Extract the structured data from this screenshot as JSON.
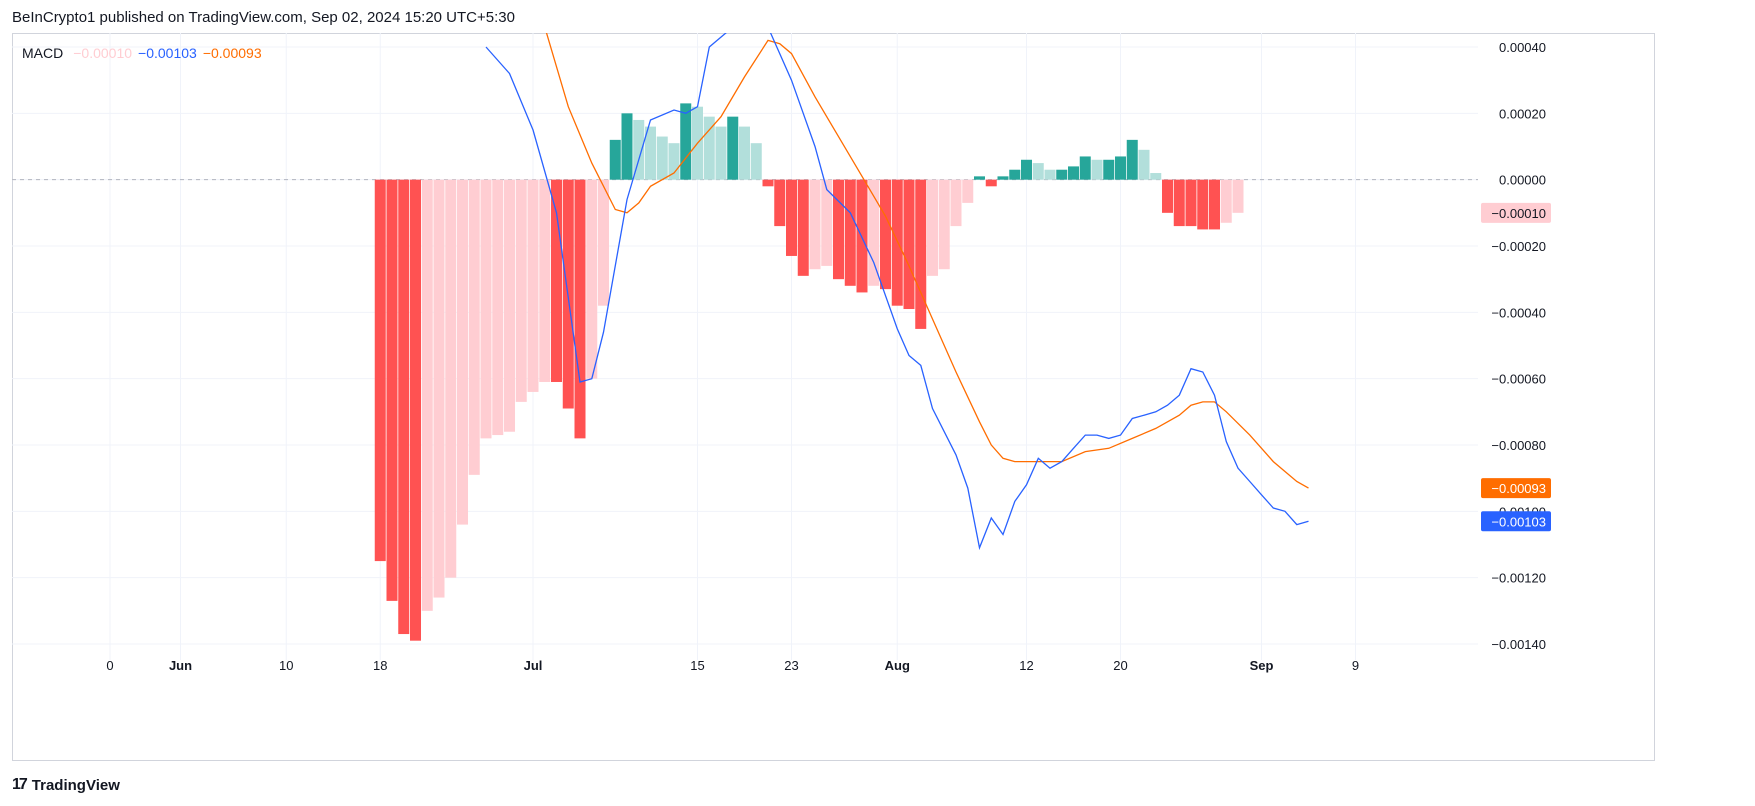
{
  "header": {
    "published": "BeInCrypto1 published on TradingView.com, Sep 02, 2024 15:20 UTC+5:30"
  },
  "legend": {
    "name": "MACD",
    "hist_value": "−0.00010",
    "macd_value": "−0.00103",
    "signal_value": "−0.00093"
  },
  "footer": {
    "logo_mark": "17",
    "brand": "TradingView"
  },
  "colors": {
    "macd_line": "#2962ff",
    "signal_line": "#ff6d00",
    "hist_pos_strong": "#26a69a",
    "hist_pos_weak": "#b2dfdb",
    "hist_neg_strong": "#ff5252",
    "hist_neg_weak": "#ffcdd2",
    "grid": "#f0f3fa",
    "zero_line": "#b2b5be"
  },
  "chart_data": {
    "type": "bar+line",
    "title": "MACD",
    "x_axis_labels": [
      {
        "label": "0",
        "day": 26
      },
      {
        "label": "Jun",
        "day": 32
      },
      {
        "label": "10",
        "day": 41
      },
      {
        "label": "18",
        "day": 49
      },
      {
        "label": "Jul",
        "day": 62
      },
      {
        "label": "15",
        "day": 76
      },
      {
        "label": "23",
        "day": 84
      },
      {
        "label": "Aug",
        "day": 93
      },
      {
        "label": "12",
        "day": 104
      },
      {
        "label": "20",
        "day": 112
      },
      {
        "label": "Sep",
        "day": 124
      },
      {
        "label": "9",
        "day": 132
      }
    ],
    "y_axis_labels": [
      "0.00040",
      "0.00020",
      "0.00000",
      "−0.00020",
      "−0.00040",
      "−0.00060",
      "−0.00080",
      "−0.00100",
      "−0.00120",
      "−0.00140"
    ],
    "ylim": [
      -0.0014,
      0.0004
    ],
    "xlim": [
      26,
      138
    ],
    "last_value_labels": [
      {
        "text": "−0.00010",
        "value": -0.0001,
        "color": "#ffcdd2",
        "text_color": "#131722"
      },
      {
        "text": "−0.00093",
        "value": -0.00093,
        "color": "#ff6d00",
        "text_color": "#ffffff"
      },
      {
        "text": "−0.00103",
        "value": -0.00103,
        "color": "#2962ff",
        "text_color": "#ffffff"
      }
    ],
    "histogram_start_day": 49,
    "histogram": [
      -0.00115,
      -0.00127,
      -0.00137,
      -0.00139,
      -0.0013,
      -0.00126,
      -0.0012,
      -0.00104,
      -0.00089,
      -0.00078,
      -0.00077,
      -0.00076,
      -0.00067,
      -0.00064,
      -0.00061,
      -0.00061,
      -0.00069,
      -0.00078,
      -0.0006,
      -0.00038,
      0.00012,
      0.0002,
      0.00018,
      0.00016,
      0.00013,
      0.00011,
      0.00023,
      0.00022,
      0.00019,
      0.00016,
      0.00019,
      0.00016,
      0.00011,
      -2e-05,
      -0.00014,
      -0.00023,
      -0.00029,
      -0.00027,
      -0.00026,
      -0.0003,
      -0.00032,
      -0.00034,
      -0.00032,
      -0.00033,
      -0.00038,
      -0.00039,
      -0.00045,
      -0.00029,
      -0.00027,
      -0.00014,
      -7e-05,
      1e-05,
      -2e-05,
      1e-05,
      3e-05,
      6e-05,
      5e-05,
      3e-05,
      3e-05,
      4e-05,
      7e-05,
      6e-05,
      6e-05,
      7e-05,
      0.00012,
      9e-05,
      2e-05,
      -0.0001,
      -0.00014,
      -0.00014,
      -0.00015,
      -0.00015,
      -0.00013,
      -0.0001
    ],
    "macd_line": {
      "name": "MACD",
      "points": [
        [
          58,
          0.0004
        ],
        [
          60,
          0.00032
        ],
        [
          62,
          0.00015
        ],
        [
          64,
          -0.0001
        ],
        [
          66,
          -0.00061
        ],
        [
          67,
          -0.0006
        ],
        [
          68,
          -0.00046
        ],
        [
          70,
          -6e-05
        ],
        [
          72,
          0.00018
        ],
        [
          74,
          0.00021
        ],
        [
          75,
          0.0002
        ],
        [
          76,
          0.00022
        ],
        [
          77,
          0.0004
        ],
        [
          79,
          0.00046
        ],
        [
          82,
          0.00046
        ],
        [
          84,
          0.0003
        ],
        [
          86,
          0.0001
        ],
        [
          87,
          -3e-05
        ],
        [
          89,
          -0.0001
        ],
        [
          91,
          -0.00025
        ],
        [
          93,
          -0.00045
        ],
        [
          94,
          -0.00053
        ],
        [
          95,
          -0.00056
        ],
        [
          96,
          -0.00069
        ],
        [
          98,
          -0.00083
        ],
        [
          99,
          -0.00093
        ],
        [
          100,
          -0.00111
        ],
        [
          101,
          -0.00102
        ],
        [
          102,
          -0.00107
        ],
        [
          103,
          -0.00097
        ],
        [
          104,
          -0.00092
        ],
        [
          105,
          -0.00084
        ],
        [
          106,
          -0.00087
        ],
        [
          107,
          -0.00085
        ],
        [
          108,
          -0.00081
        ],
        [
          109,
          -0.00077
        ],
        [
          110,
          -0.00077
        ],
        [
          111,
          -0.00078
        ],
        [
          112,
          -0.00077
        ],
        [
          113,
          -0.00072
        ],
        [
          114,
          -0.00071
        ],
        [
          115,
          -0.0007
        ],
        [
          116,
          -0.00068
        ],
        [
          117,
          -0.00065
        ],
        [
          118,
          -0.00057
        ],
        [
          119,
          -0.00058
        ],
        [
          120,
          -0.00065
        ],
        [
          121,
          -0.00079
        ],
        [
          122,
          -0.00087
        ],
        [
          123,
          -0.00091
        ],
        [
          124,
          -0.00095
        ],
        [
          125,
          -0.00099
        ],
        [
          126,
          -0.001
        ],
        [
          127,
          -0.00104
        ],
        [
          128,
          -0.00103
        ]
      ]
    },
    "signal_line": {
      "name": "Signal",
      "points": [
        [
          63,
          0.00046
        ],
        [
          65,
          0.00022
        ],
        [
          67,
          5e-05
        ],
        [
          69,
          -9e-05
        ],
        [
          70,
          -0.0001
        ],
        [
          71,
          -7e-05
        ],
        [
          72,
          -2e-05
        ],
        [
          74,
          2e-05
        ],
        [
          76,
          0.00011
        ],
        [
          78,
          0.00019
        ],
        [
          80,
          0.00031
        ],
        [
          82,
          0.00042
        ],
        [
          83,
          0.00041
        ],
        [
          84,
          0.00038
        ],
        [
          86,
          0.00025
        ],
        [
          88,
          0.00013
        ],
        [
          90,
          1e-05
        ],
        [
          92,
          -0.00011
        ],
        [
          94,
          -0.00026
        ],
        [
          96,
          -0.00042
        ],
        [
          98,
          -0.00058
        ],
        [
          100,
          -0.00073
        ],
        [
          101,
          -0.0008
        ],
        [
          102,
          -0.00084
        ],
        [
          103,
          -0.00085
        ],
        [
          105,
          -0.00085
        ],
        [
          107,
          -0.00085
        ],
        [
          109,
          -0.00082
        ],
        [
          111,
          -0.00081
        ],
        [
          113,
          -0.00078
        ],
        [
          115,
          -0.00075
        ],
        [
          117,
          -0.00071
        ],
        [
          118,
          -0.00068
        ],
        [
          119,
          -0.00067
        ],
        [
          120,
          -0.00067
        ],
        [
          121,
          -0.0007
        ],
        [
          123,
          -0.00077
        ],
        [
          125,
          -0.00085
        ],
        [
          127,
          -0.00091
        ],
        [
          128,
          -0.00093
        ]
      ]
    }
  }
}
